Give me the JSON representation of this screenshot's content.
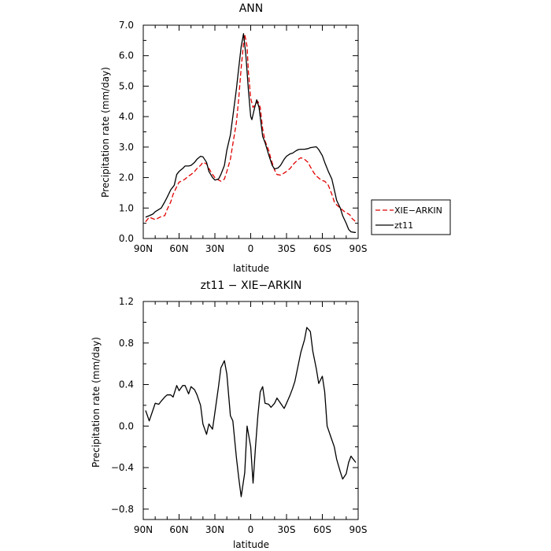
{
  "chart_data": [
    {
      "type": "line",
      "title": "ANN",
      "xlabel": "latitude",
      "ylabel": "Precipitation rate (mm/day)",
      "xlim": [
        90,
        -90
      ],
      "ylim": [
        0,
        7
      ],
      "x_ticks": [
        90,
        60,
        30,
        0,
        -30,
        -60,
        -90
      ],
      "x_tick_labels": [
        "90N",
        "60N",
        "30N",
        "0",
        "30S",
        "60S",
        "90S"
      ],
      "y_ticks": [
        0,
        1,
        2,
        3,
        4,
        5,
        6,
        7
      ],
      "y_tick_labels": [
        "0.0",
        "1.0",
        "2.0",
        "3.0",
        "4.0",
        "5.0",
        "6.0",
        "7.0"
      ],
      "grid": false,
      "legend": "right",
      "series": [
        {
          "name": "XIE−ARKIN",
          "color": "#e00000",
          "dash": "dashed",
          "points": [
            [
              88,
              0.55
            ],
            [
              85,
              0.7
            ],
            [
              80,
              0.62
            ],
            [
              75,
              0.72
            ],
            [
              72,
              0.75
            ],
            [
              70,
              0.95
            ],
            [
              67,
              1.2
            ],
            [
              65,
              1.45
            ],
            [
              62,
              1.7
            ],
            [
              60,
              1.85
            ],
            [
              57,
              1.9
            ],
            [
              55,
              1.95
            ],
            [
              52,
              2.05
            ],
            [
              50,
              2.1
            ],
            [
              47,
              2.2
            ],
            [
              45,
              2.3
            ],
            [
              42,
              2.4
            ],
            [
              40,
              2.5
            ],
            [
              37,
              2.45
            ],
            [
              35,
              2.3
            ],
            [
              32,
              2.1
            ],
            [
              30,
              2.0
            ],
            [
              27,
              1.92
            ],
            [
              25,
              1.88
            ],
            [
              22,
              1.95
            ],
            [
              20,
              2.2
            ],
            [
              17,
              2.6
            ],
            [
              15,
              3.1
            ],
            [
              12,
              3.8
            ],
            [
              10,
              4.6
            ],
            [
              8,
              5.6
            ],
            [
              6,
              6.4
            ],
            [
              5,
              6.7
            ],
            [
              3,
              6.3
            ],
            [
              2,
              5.5
            ],
            [
              0,
              4.6
            ],
            [
              -2,
              4.3
            ],
            [
              -4,
              4.4
            ],
            [
              -6,
              4.5
            ],
            [
              -8,
              4.3
            ],
            [
              -10,
              3.6
            ],
            [
              -12,
              3.2
            ],
            [
              -15,
              2.9
            ],
            [
              -17,
              2.6
            ],
            [
              -20,
              2.25
            ],
            [
              -22,
              2.1
            ],
            [
              -25,
              2.08
            ],
            [
              -28,
              2.15
            ],
            [
              -30,
              2.2
            ],
            [
              -33,
              2.3
            ],
            [
              -36,
              2.45
            ],
            [
              -40,
              2.6
            ],
            [
              -42,
              2.65
            ],
            [
              -45,
              2.6
            ],
            [
              -48,
              2.5
            ],
            [
              -50,
              2.35
            ],
            [
              -53,
              2.15
            ],
            [
              -55,
              2.05
            ],
            [
              -58,
              1.95
            ],
            [
              -60,
              1.9
            ],
            [
              -62,
              1.88
            ],
            [
              -65,
              1.75
            ],
            [
              -68,
              1.45
            ],
            [
              -70,
              1.2
            ],
            [
              -72,
              1.1
            ],
            [
              -75,
              1.0
            ],
            [
              -78,
              0.9
            ],
            [
              -80,
              0.85
            ],
            [
              -83,
              0.78
            ],
            [
              -85,
              0.65
            ],
            [
              -88,
              0.55
            ]
          ]
        },
        {
          "name": "zt11",
          "color": "#000000",
          "dash": "solid",
          "points": [
            [
              88,
              0.7
            ],
            [
              85,
              0.75
            ],
            [
              82,
              0.8
            ],
            [
              80,
              0.88
            ],
            [
              77,
              0.95
            ],
            [
              75,
              1.0
            ],
            [
              72,
              1.2
            ],
            [
              70,
              1.35
            ],
            [
              67,
              1.6
            ],
            [
              64,
              1.75
            ],
            [
              62,
              2.1
            ],
            [
              60,
              2.2
            ],
            [
              57,
              2.3
            ],
            [
              55,
              2.38
            ],
            [
              52,
              2.38
            ],
            [
              50,
              2.4
            ],
            [
              47,
              2.5
            ],
            [
              45,
              2.6
            ],
            [
              42,
              2.7
            ],
            [
              40,
              2.68
            ],
            [
              37,
              2.5
            ],
            [
              35,
              2.2
            ],
            [
              32,
              2.0
            ],
            [
              30,
              1.92
            ],
            [
              27,
              1.95
            ],
            [
              25,
              2.1
            ],
            [
              22,
              2.4
            ],
            [
              20,
              2.9
            ],
            [
              17,
              3.4
            ],
            [
              15,
              4.0
            ],
            [
              12,
              4.9
            ],
            [
              10,
              5.6
            ],
            [
              8,
              6.3
            ],
            [
              6,
              6.72
            ],
            [
              4,
              6.0
            ],
            [
              2,
              4.9
            ],
            [
              0,
              4.0
            ],
            [
              -1,
              3.9
            ],
            [
              -3,
              4.25
            ],
            [
              -5,
              4.55
            ],
            [
              -7,
              4.3
            ],
            [
              -10,
              3.35
            ],
            [
              -12,
              3.15
            ],
            [
              -15,
              2.75
            ],
            [
              -18,
              2.4
            ],
            [
              -20,
              2.28
            ],
            [
              -23,
              2.32
            ],
            [
              -25,
              2.4
            ],
            [
              -28,
              2.6
            ],
            [
              -30,
              2.7
            ],
            [
              -33,
              2.78
            ],
            [
              -35,
              2.8
            ],
            [
              -38,
              2.88
            ],
            [
              -40,
              2.92
            ],
            [
              -42,
              2.93
            ],
            [
              -45,
              2.93
            ],
            [
              -48,
              2.95
            ],
            [
              -50,
              2.98
            ],
            [
              -53,
              3.0
            ],
            [
              -55,
              3.01
            ],
            [
              -57,
              2.92
            ],
            [
              -60,
              2.72
            ],
            [
              -62,
              2.5
            ],
            [
              -65,
              2.2
            ],
            [
              -68,
              1.95
            ],
            [
              -70,
              1.6
            ],
            [
              -72,
              1.25
            ],
            [
              -75,
              1.0
            ],
            [
              -77,
              0.75
            ],
            [
              -80,
              0.5
            ],
            [
              -82,
              0.3
            ],
            [
              -84,
              0.22
            ],
            [
              -87,
              0.2
            ],
            [
              -88,
              0.2
            ]
          ]
        }
      ]
    },
    {
      "type": "line",
      "title": "zt11 − XIE−ARKIN",
      "xlabel": "latitude",
      "ylabel": "Precipitation rate (mm/day)",
      "xlim": [
        90,
        -90
      ],
      "ylim": [
        -0.9,
        1.2
      ],
      "x_ticks": [
        90,
        60,
        30,
        0,
        -30,
        -60,
        -90
      ],
      "x_tick_labels": [
        "90N",
        "60N",
        "30N",
        "0",
        "30S",
        "60S",
        "90S"
      ],
      "y_ticks": [
        -0.8,
        -0.4,
        0.0,
        0.4,
        0.8,
        1.2
      ],
      "y_tick_labels": [
        "−0.8",
        "−0.4",
        "0.0",
        "0.4",
        "0.8",
        "1.2"
      ],
      "grid": false,
      "series": [
        {
          "color": "#000000",
          "dash": "solid",
          "points": [
            [
              88,
              0.15
            ],
            [
              85,
              0.05
            ],
            [
              82,
              0.15
            ],
            [
              80,
              0.22
            ],
            [
              77,
              0.21
            ],
            [
              75,
              0.24
            ],
            [
              72,
              0.28
            ],
            [
              70,
              0.3
            ],
            [
              67,
              0.3
            ],
            [
              65,
              0.28
            ],
            [
              62,
              0.39
            ],
            [
              60,
              0.34
            ],
            [
              57,
              0.39
            ],
            [
              55,
              0.39
            ],
            [
              52,
              0.31
            ],
            [
              50,
              0.38
            ],
            [
              47,
              0.35
            ],
            [
              45,
              0.3
            ],
            [
              42,
              0.2
            ],
            [
              40,
              0.02
            ],
            [
              37,
              -0.08
            ],
            [
              35,
              0.02
            ],
            [
              32,
              -0.03
            ],
            [
              30,
              0.13
            ],
            [
              27,
              0.38
            ],
            [
              25,
              0.56
            ],
            [
              22,
              0.63
            ],
            [
              20,
              0.5
            ],
            [
              17,
              0.1
            ],
            [
              15,
              0.05
            ],
            [
              12,
              -0.3
            ],
            [
              10,
              -0.5
            ],
            [
              8,
              -0.68
            ],
            [
              5,
              -0.45
            ],
            [
              3,
              0.0
            ],
            [
              0,
              -0.2
            ],
            [
              -2,
              -0.55
            ],
            [
              -4,
              -0.2
            ],
            [
              -6,
              0.1
            ],
            [
              -8,
              0.33
            ],
            [
              -10,
              0.38
            ],
            [
              -12,
              0.22
            ],
            [
              -15,
              0.21
            ],
            [
              -17,
              0.18
            ],
            [
              -20,
              0.22
            ],
            [
              -22,
              0.27
            ],
            [
              -25,
              0.22
            ],
            [
              -28,
              0.17
            ],
            [
              -30,
              0.22
            ],
            [
              -33,
              0.3
            ],
            [
              -35,
              0.36
            ],
            [
              -37,
              0.43
            ],
            [
              -40,
              0.6
            ],
            [
              -42,
              0.71
            ],
            [
              -45,
              0.83
            ],
            [
              -47,
              0.95
            ],
            [
              -50,
              0.91
            ],
            [
              -52,
              0.72
            ],
            [
              -55,
              0.55
            ],
            [
              -57,
              0.41
            ],
            [
              -60,
              0.48
            ],
            [
              -62,
              0.33
            ],
            [
              -64,
              0.0
            ],
            [
              -67,
              -0.1
            ],
            [
              -70,
              -0.2
            ],
            [
              -72,
              -0.32
            ],
            [
              -75,
              -0.44
            ],
            [
              -77,
              -0.51
            ],
            [
              -80,
              -0.46
            ],
            [
              -82,
              -0.35
            ],
            [
              -84,
              -0.29
            ],
            [
              -86,
              -0.32
            ],
            [
              -88,
              -0.35
            ]
          ]
        }
      ]
    }
  ]
}
